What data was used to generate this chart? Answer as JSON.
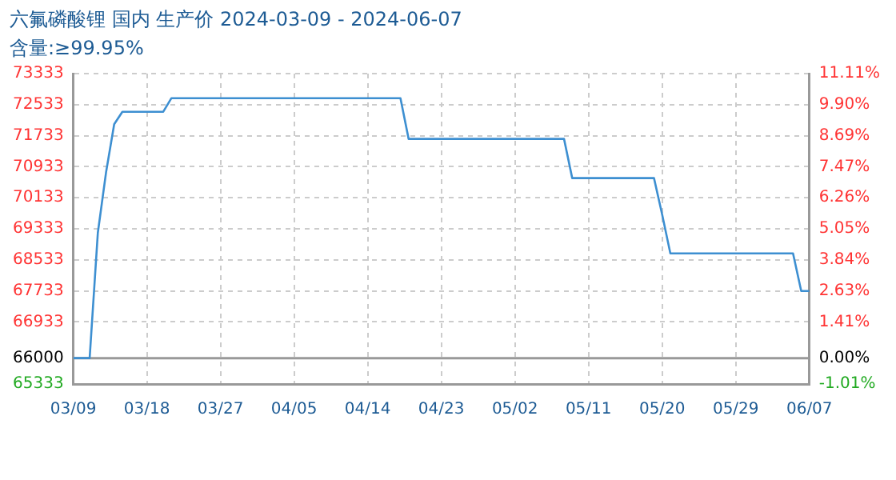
{
  "chart_data": {
    "type": "line",
    "title": "六氟磷酸锂 国内 生产价 2024-03-09 - 2024-06-07",
    "subtitle": "含量:≥99.95%",
    "x": [
      "2024-03-09",
      "2024-03-11",
      "2024-03-12",
      "2024-03-13",
      "2024-03-14",
      "2024-03-15",
      "2024-03-20",
      "2024-03-21",
      "2024-04-18",
      "2024-04-19",
      "2024-05-08",
      "2024-05-09",
      "2024-05-19",
      "2024-05-20",
      "2024-05-21",
      "2024-06-05",
      "2024-06-06",
      "2024-06-07"
    ],
    "series": [
      {
        "color": "#3d8fd1",
        "values": [
          66000,
          66000,
          69230,
          70780,
          72030,
          72350,
          72350,
          72700,
          72700,
          71650,
          71650,
          70640,
          70640,
          69700,
          68700,
          68700,
          67730,
          67730
        ]
      }
    ],
    "xlim": [
      "2024-03-09",
      "2024-06-07"
    ],
    "xticks": [
      {
        "value": "2024-03-09",
        "label": "03/09"
      },
      {
        "value": "2024-03-18",
        "label": "03/18"
      },
      {
        "value": "2024-03-27",
        "label": "03/27"
      },
      {
        "value": "2024-04-05",
        "label": "04/05"
      },
      {
        "value": "2024-04-14",
        "label": "04/14"
      },
      {
        "value": "2024-04-23",
        "label": "04/23"
      },
      {
        "value": "2024-05-02",
        "label": "05/02"
      },
      {
        "value": "2024-05-11",
        "label": "05/11"
      },
      {
        "value": "2024-05-20",
        "label": "05/20"
      },
      {
        "value": "2024-05-29",
        "label": "05/29"
      },
      {
        "value": "2024-06-07",
        "label": "06/07"
      }
    ],
    "ylim": [
      65333,
      73333
    ],
    "yticks": [
      73333,
      72533,
      71733,
      70933,
      70133,
      69333,
      68533,
      67733,
      66933,
      66000,
      65333
    ],
    "y2lim": [
      -1.01,
      11.11
    ],
    "y2ticks": [
      {
        "value": 11.11,
        "label": "11.11%"
      },
      {
        "value": 9.9,
        "label": "9.90%"
      },
      {
        "value": 8.69,
        "label": "8.69%"
      },
      {
        "value": 7.47,
        "label": "7.47%"
      },
      {
        "value": 6.26,
        "label": "6.26%"
      },
      {
        "value": 5.05,
        "label": "5.05%"
      },
      {
        "value": 3.84,
        "label": "3.84%"
      },
      {
        "value": 2.63,
        "label": "2.63%"
      },
      {
        "value": 1.41,
        "label": "1.41%"
      },
      {
        "value": 0,
        "label": "0.00%"
      },
      {
        "value": -1.01,
        "label": "-1.01%"
      }
    ],
    "ref_lines": [
      {
        "axis": "y",
        "value": 66000,
        "color": "#999999",
        "line_style": "solid"
      }
    ],
    "grid": true,
    "legend": false,
    "marker": "none",
    "line_style": "solid"
  }
}
